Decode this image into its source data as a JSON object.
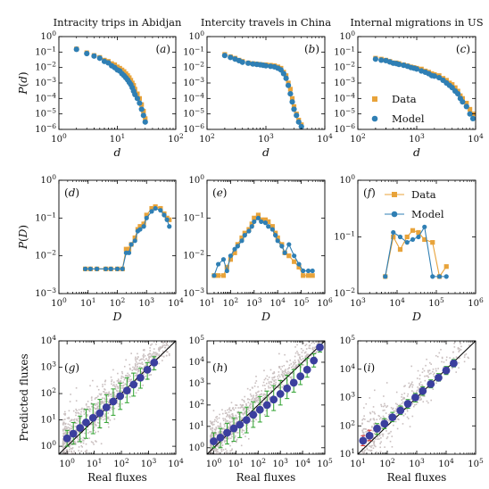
{
  "colors": {
    "data": "#e8a33a",
    "model": "#2f7fb4",
    "scatter": "#c9bfbf",
    "binned": "#3b3f9e",
    "whisker": "#2ca02c",
    "whisker_alt": "#d62728"
  },
  "chart_data": [
    {
      "id": "a",
      "type": "scatter",
      "panel_label": "(a)",
      "title": "Intracity trips in Abidjan",
      "xlabel": "d",
      "ylabel": "P(d)",
      "xscale": "log",
      "yscale": "log",
      "xlim": [
        1,
        100
      ],
      "ylim": [
        1e-06,
        1
      ],
      "xticks": [
        "10^0",
        "10^1",
        "10^2"
      ],
      "yticks": [
        "10^-6",
        "10^-5",
        "10^-4",
        "10^-3",
        "10^-2",
        "10^-1",
        "10^0"
      ],
      "series": [
        {
          "name": "Data",
          "marker": "square",
          "x": [
            2,
            3,
            4,
            5,
            6,
            7,
            8,
            9,
            10,
            11,
            12,
            13,
            14,
            15,
            16,
            17,
            18,
            19,
            20,
            22,
            24,
            26,
            28,
            30
          ],
          "y": [
            0.16,
            0.09,
            0.06,
            0.045,
            0.03,
            0.025,
            0.018,
            0.015,
            0.011,
            0.009,
            0.007,
            0.0055,
            0.004,
            0.003,
            0.0022,
            0.0015,
            0.001,
            0.0007,
            0.0004,
            0.0002,
            0.0001,
            4e-05,
            1.5e-05,
            5e-06
          ]
        },
        {
          "name": "Model",
          "marker": "circle",
          "x": [
            2,
            3,
            4,
            5,
            6,
            7,
            8,
            9,
            10,
            11,
            12,
            13,
            14,
            15,
            16,
            17,
            18,
            19,
            20,
            22,
            24,
            26,
            28,
            30
          ],
          "y": [
            0.15,
            0.08,
            0.055,
            0.04,
            0.025,
            0.02,
            0.013,
            0.01,
            0.007,
            0.006,
            0.004,
            0.003,
            0.0022,
            0.0016,
            0.0011,
            0.0008,
            0.0005,
            0.0003,
            0.00018,
            0.0001,
            5e-05,
            2e-05,
            8e-06,
            3e-06
          ]
        }
      ]
    },
    {
      "id": "b",
      "type": "scatter",
      "panel_label": "(b)",
      "title": "Intercity travels in China",
      "xlabel": "d",
      "ylabel": "",
      "xscale": "log",
      "yscale": "log",
      "xlim": [
        100,
        10000
      ],
      "ylim": [
        1e-06,
        1
      ],
      "xticks": [
        "10^2",
        "10^3",
        "10^4"
      ],
      "yticks": [
        "10^-6",
        "10^-5",
        "10^-4",
        "10^-3",
        "10^-2",
        "10^-1",
        "10^0"
      ],
      "series": [
        {
          "name": "Data",
          "marker": "square",
          "x": [
            200,
            250,
            300,
            350,
            400,
            500,
            600,
            700,
            800,
            900,
            1000,
            1200,
            1400,
            1600,
            1800,
            2000,
            2200,
            2400,
            2600,
            2800,
            3000,
            3300,
            3600,
            4000
          ],
          "y": [
            0.07,
            0.05,
            0.04,
            0.03,
            0.025,
            0.02,
            0.018,
            0.017,
            0.016,
            0.015,
            0.015,
            0.014,
            0.013,
            0.011,
            0.009,
            0.005,
            0.003,
            0.001,
            0.0004,
            0.0001,
            3e-05,
            1e-05,
            4e-06,
            2e-06
          ]
        },
        {
          "name": "Model",
          "marker": "circle",
          "x": [
            200,
            250,
            300,
            350,
            400,
            500,
            600,
            700,
            800,
            900,
            1000,
            1200,
            1400,
            1600,
            1800,
            2000,
            2200,
            2400,
            2600,
            2800,
            3000,
            3300,
            3600,
            4000
          ],
          "y": [
            0.06,
            0.045,
            0.035,
            0.028,
            0.022,
            0.019,
            0.017,
            0.016,
            0.015,
            0.014,
            0.013,
            0.012,
            0.011,
            0.009,
            0.007,
            0.004,
            0.002,
            0.0007,
            0.0002,
            6e-05,
            2e-05,
            8e-06,
            3e-06,
            1.5e-06
          ]
        }
      ]
    },
    {
      "id": "c",
      "type": "scatter",
      "panel_label": "(c)",
      "title": "Internal migrations in US",
      "xlabel": "d",
      "ylabel": "",
      "xscale": "log",
      "yscale": "log",
      "xlim": [
        100,
        10000
      ],
      "ylim": [
        1e-06,
        1
      ],
      "xticks": [
        "10^2",
        "10^3",
        "10^4"
      ],
      "yticks": [
        "10^-6",
        "10^-5",
        "10^-4",
        "10^-3",
        "10^-2",
        "10^-1",
        "10^0"
      ],
      "legend": {
        "placement": "lower-left",
        "entries": [
          "Data",
          "Model"
        ]
      },
      "series": [
        {
          "name": "Data",
          "marker": "square",
          "x": [
            200,
            250,
            300,
            350,
            400,
            450,
            500,
            600,
            700,
            800,
            900,
            1000,
            1200,
            1400,
            1600,
            1800,
            2000,
            2400,
            2800,
            3200,
            3600,
            4000,
            4500,
            5000,
            5500,
            6000,
            7000,
            8000,
            9000
          ],
          "y": [
            0.04,
            0.035,
            0.03,
            0.025,
            0.02,
            0.02,
            0.018,
            0.015,
            0.013,
            0.011,
            0.01,
            0.009,
            0.008,
            0.006,
            0.005,
            0.004,
            0.0035,
            0.003,
            0.002,
            0.0015,
            0.001,
            0.0008,
            0.0005,
            0.0003,
            0.00015,
            0.0001,
            5e-05,
            2e-05,
            1e-05
          ]
        },
        {
          "name": "Model",
          "marker": "circle",
          "x": [
            200,
            250,
            300,
            350,
            400,
            450,
            500,
            600,
            700,
            800,
            900,
            1000,
            1200,
            1400,
            1600,
            1800,
            2000,
            2400,
            2800,
            3200,
            3600,
            4000,
            4500,
            5000,
            5500,
            6000,
            7000,
            8000,
            9000
          ],
          "y": [
            0.035,
            0.03,
            0.028,
            0.023,
            0.019,
            0.018,
            0.016,
            0.014,
            0.012,
            0.01,
            0.009,
            0.008,
            0.006,
            0.005,
            0.004,
            0.003,
            0.0028,
            0.0022,
            0.0015,
            0.001,
            0.0007,
            0.0005,
            0.0003,
            0.0002,
            0.0001,
            6e-05,
            3e-05,
            1e-05,
            5e-06
          ]
        }
      ]
    },
    {
      "id": "d",
      "type": "line",
      "panel_label": "(d)",
      "xlabel": "D",
      "ylabel": "P(D)",
      "xscale": "log",
      "yscale": "log",
      "xlim": [
        1,
        10000
      ],
      "ylim": [
        0.001,
        1
      ],
      "xticks": [
        "10^0",
        "10^1",
        "10^2",
        "10^3",
        "10^4"
      ],
      "yticks": [
        "10^-3",
        "10^-2",
        "10^-1",
        "10^0"
      ],
      "series": [
        {
          "name": "Data",
          "marker": "square",
          "x": [
            8,
            12,
            20,
            40,
            60,
            100,
            150,
            200,
            250,
            300,
            400,
            500,
            600,
            800,
            1000,
            1500,
            2000,
            3000,
            4000,
            5000,
            6000
          ],
          "y": [
            0.0045,
            0.0045,
            0.0045,
            0.0045,
            0.0045,
            0.0045,
            0.0045,
            0.015,
            0.015,
            0.02,
            0.03,
            0.05,
            0.06,
            0.07,
            0.12,
            0.18,
            0.2,
            0.18,
            0.13,
            0.1,
            0.09
          ]
        },
        {
          "name": "Model",
          "marker": "circle",
          "x": [
            8,
            12,
            20,
            40,
            60,
            100,
            150,
            200,
            250,
            300,
            400,
            500,
            600,
            800,
            1000,
            1500,
            2000,
            3000,
            4000,
            5000,
            6000
          ],
          "y": [
            0.0045,
            0.0045,
            0.0045,
            0.0045,
            0.0045,
            0.0045,
            0.0045,
            0.012,
            0.012,
            0.02,
            0.025,
            0.045,
            0.05,
            0.06,
            0.1,
            0.15,
            0.18,
            0.16,
            0.12,
            0.09,
            0.06
          ]
        }
      ]
    },
    {
      "id": "e",
      "type": "line",
      "panel_label": "(e)",
      "xlabel": "D",
      "ylabel": "",
      "xscale": "log",
      "yscale": "log",
      "xlim": [
        10,
        1000000
      ],
      "ylim": [
        0.001,
        1
      ],
      "xticks": [
        "10^1",
        "10^2",
        "10^3",
        "10^4",
        "10^5",
        "10^6"
      ],
      "yticks": [
        "10^-3",
        "10^-2",
        "10^-1",
        "10^0"
      ],
      "series": [
        {
          "name": "Data",
          "marker": "square",
          "x": [
            20,
            30,
            50,
            70,
            100,
            150,
            200,
            300,
            400,
            600,
            800,
            1000,
            1500,
            2000,
            3000,
            4000,
            6000,
            8000,
            10000,
            15000,
            20000,
            30000,
            50000,
            80000,
            120000,
            200000,
            300000
          ],
          "y": [
            0.003,
            0.003,
            0.003,
            0.005,
            0.008,
            0.012,
            0.02,
            0.03,
            0.04,
            0.05,
            0.07,
            0.1,
            0.12,
            0.09,
            0.09,
            0.08,
            0.06,
            0.04,
            0.03,
            0.02,
            0.012,
            0.01,
            0.007,
            0.005,
            0.003,
            0.003,
            0.003
          ]
        },
        {
          "name": "Model",
          "marker": "circle",
          "x": [
            20,
            30,
            50,
            70,
            100,
            150,
            200,
            300,
            400,
            600,
            800,
            1000,
            1500,
            2000,
            3000,
            4000,
            6000,
            8000,
            10000,
            15000,
            20000,
            30000,
            50000,
            80000,
            120000,
            200000,
            300000
          ],
          "y": [
            0.003,
            0.006,
            0.008,
            0.004,
            0.01,
            0.015,
            0.018,
            0.025,
            0.035,
            0.045,
            0.06,
            0.08,
            0.1,
            0.08,
            0.075,
            0.06,
            0.05,
            0.035,
            0.025,
            0.018,
            0.012,
            0.02,
            0.01,
            0.006,
            0.004,
            0.004,
            0.004
          ]
        }
      ]
    },
    {
      "id": "f",
      "type": "line",
      "panel_label": "(f)",
      "xlabel": "D",
      "ylabel": "",
      "xscale": "log",
      "yscale": "log",
      "xlim": [
        1000,
        1000000
      ],
      "ylim": [
        0.01,
        1
      ],
      "xticks": [
        "10^3",
        "10^4",
        "10^5",
        "10^6"
      ],
      "yticks": [
        "10^-2",
        "10^-1",
        "10^0"
      ],
      "legend": {
        "placement": "top-right",
        "entries": [
          "Data",
          "Model"
        ]
      },
      "series": [
        {
          "name": "Data",
          "marker": "square",
          "x": [
            5000,
            8000,
            12000,
            18000,
            25000,
            35000,
            50000,
            80000,
            120000,
            180000
          ],
          "y": [
            0.02,
            0.1,
            0.06,
            0.1,
            0.13,
            0.12,
            0.09,
            0.08,
            0.02,
            0.03
          ]
        },
        {
          "name": "Model",
          "marker": "circle",
          "x": [
            5000,
            8000,
            12000,
            18000,
            25000,
            35000,
            50000,
            80000,
            120000,
            180000
          ],
          "y": [
            0.02,
            0.12,
            0.1,
            0.08,
            0.09,
            0.1,
            0.15,
            0.02,
            0.02,
            0.02
          ]
        }
      ]
    },
    {
      "id": "g",
      "type": "scatter",
      "panel_label": "(g)",
      "xlabel": "Real fluxes",
      "ylabel": "Predicted fluxes",
      "xscale": "log",
      "yscale": "log",
      "xlim": [
        0.5,
        10000
      ],
      "ylim": [
        0.5,
        10000
      ],
      "xticks": [
        "10^0",
        "10^1",
        "10^2",
        "10^3",
        "10^4"
      ],
      "yticks": [
        "10^0",
        "10^1",
        "10^2",
        "10^3",
        "10^4"
      ],
      "binned": {
        "x": [
          1,
          1.7,
          3,
          5,
          9,
          16,
          28,
          50,
          90,
          160,
          280,
          500,
          900,
          1600
        ],
        "y": [
          2,
          3,
          5,
          8,
          12,
          18,
          30,
          50,
          80,
          130,
          220,
          400,
          800,
          1500
        ],
        "lower": [
          1,
          1.2,
          1.5,
          2,
          3,
          5,
          8,
          15,
          25,
          45,
          80,
          160,
          350,
          800
        ],
        "upper": [
          4,
          8,
          14,
          25,
          40,
          60,
          90,
          150,
          250,
          400,
          600,
          900,
          1500,
          2500
        ]
      }
    },
    {
      "id": "h",
      "type": "scatter",
      "panel_label": "(h)",
      "xlabel": "Real fluxes",
      "ylabel": "",
      "xscale": "log",
      "yscale": "log",
      "xlim": [
        0.5,
        100000
      ],
      "ylim": [
        0.5,
        100000
      ],
      "xticks": [
        "10^0",
        "10^1",
        "10^2",
        "10^3",
        "10^4",
        "10^5"
      ],
      "yticks": [
        "10^0",
        "10^1",
        "10^2",
        "10^3",
        "10^4",
        "10^5"
      ],
      "binned": {
        "x": [
          1,
          2,
          4,
          8,
          15,
          30,
          60,
          120,
          250,
          500,
          1000,
          2000,
          4000,
          8000,
          16000,
          32000,
          60000
        ],
        "y": [
          2,
          3,
          5,
          8,
          12,
          20,
          35,
          60,
          100,
          180,
          330,
          600,
          1100,
          2200,
          4500,
          12000,
          50000
        ],
        "lower": [
          1,
          1,
          1.5,
          2,
          3,
          5,
          9,
          16,
          30,
          55,
          100,
          200,
          400,
          900,
          2000,
          6000,
          30000
        ],
        "upper": [
          5,
          8,
          14,
          25,
          45,
          80,
          140,
          250,
          450,
          800,
          1400,
          2500,
          4500,
          8000,
          15000,
          25000,
          70000
        ]
      }
    },
    {
      "id": "i",
      "type": "scatter",
      "panel_label": "(i)",
      "xlabel": "Real fluxes",
      "ylabel": "",
      "xscale": "log",
      "yscale": "log",
      "xlim": [
        10,
        100000
      ],
      "ylim": [
        10,
        100000
      ],
      "xticks": [
        "10^1",
        "10^2",
        "10^3",
        "10^4",
        "10^5"
      ],
      "yticks": [
        "10^1",
        "10^2",
        "10^3",
        "10^4",
        "10^5"
      ],
      "binned": {
        "x": [
          15,
          25,
          45,
          80,
          150,
          280,
          500,
          900,
          1600,
          3000,
          5500,
          10000,
          18000
        ],
        "y": [
          30,
          45,
          80,
          120,
          200,
          350,
          600,
          1000,
          1700,
          3000,
          5000,
          9000,
          16000
        ],
        "lower": [
          20,
          30,
          50,
          80,
          140,
          250,
          420,
          700,
          1200,
          2200,
          3800,
          6500,
          12000
        ],
        "upper": [
          45,
          70,
          120,
          180,
          300,
          500,
          850,
          1400,
          2400,
          4200,
          7000,
          12500,
          22000
        ]
      }
    }
  ]
}
